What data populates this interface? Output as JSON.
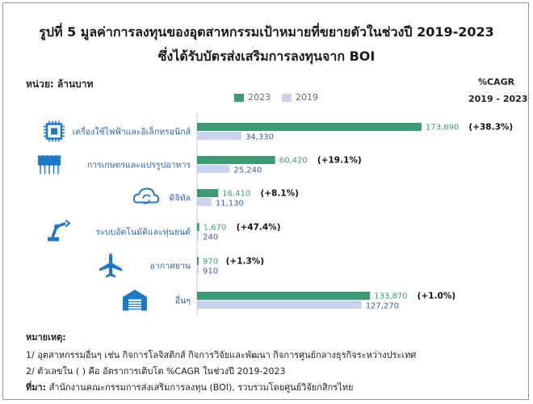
{
  "title_line1": "รูปที่ 5 มูลค่าการลงทุนของอุตสาหกรรมเป้าหมายที่ขยายตัวในช่วงปี 2019-2023",
  "title_line2": "ซึ่งได้รับบัตรส่งเสริมการลงทุนจาก BOI",
  "unit_label": "หน่วย: ล้านบาท",
  "cagr_header": "%CAGR",
  "cagr_period": "2019 - 2023",
  "colors": {
    "bar_2023": "#3e9a72",
    "bar_2019": "#c9d2ee",
    "icon": "#1e78c8"
  },
  "chart_data": {
    "type": "bar",
    "orientation": "horizontal",
    "categories": [
      "เครื่องใช้ไฟฟ้าและอิเล็กทรอนิกส์",
      "การเกษตรและแปรรูปอาหาร",
      "ดิจิทัล",
      "ระบบอัตโนมัติและหุ่นยนต์",
      "อากาศยาน",
      "อื่นๆ"
    ],
    "icons": [
      "chip-icon",
      "wheat-icon",
      "cloud-sync-icon",
      "robot-arm-icon",
      "airplane-icon",
      "warehouse-icon"
    ],
    "series": [
      {
        "name": "2023",
        "values": [
          173690,
          60420,
          16410,
          1670,
          970,
          133870
        ]
      },
      {
        "name": "2019",
        "values": [
          34330,
          25240,
          11130,
          240,
          910,
          127270
        ]
      }
    ],
    "value_labels": {
      "2023": [
        "173,690",
        "60,420",
        "16,410",
        "1,670",
        "970",
        "133,870"
      ],
      "2019": [
        "34,330",
        "25,240",
        "11,130",
        "240",
        "910",
        "127,270"
      ]
    },
    "cagr": [
      "(+38.3%)",
      "(+19.1%)",
      "(+8.1%)",
      "(+47.4%)",
      "(+1.3%)",
      "(+1.0%)"
    ],
    "xlim": [
      0,
      180000
    ],
    "legend": "top",
    "grid": false
  },
  "notes": {
    "heading": "หมายเหตุ:",
    "note1": "1/  อุตสาหกรรมอื่นๆ เช่น กิจการโลจิสติกส์ กิจการวิจัยและพัฒนา กิจการศูนย์กลางธุรกิจระหว่างประเทศ",
    "note2": "2/  ตัวเลขใน ( ) คือ  อัตราการเติบโต %CAGR ในช่วงปี 2019-2023",
    "source_label": "ที่มา:",
    "source_text": " สำนักงานคณะกรรมการส่งเสริมการลงทุน (BOI), รวบรวมโดยศูนย์วิจัยกสิกรไทย"
  }
}
